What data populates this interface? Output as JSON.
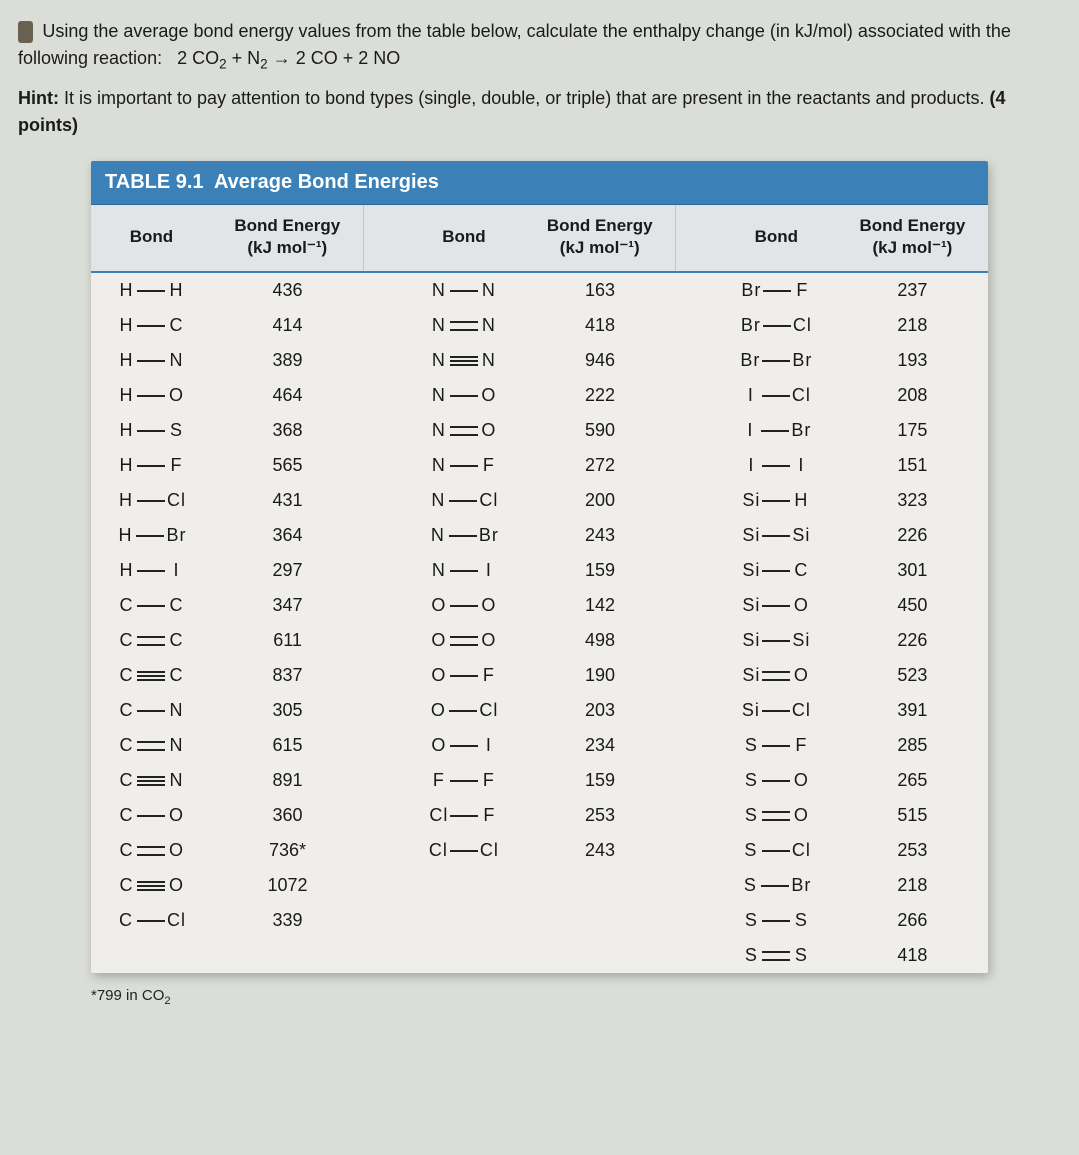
{
  "question": {
    "line1": "Using the average bond energy values from the table below, calculate the enthalpy change (in kJ/mol) associated with the following reaction:",
    "reaction": "2 CO₂ + N₂ → 2 CO + 2 NO"
  },
  "hint": {
    "prefix": "Hint:",
    "text": "It is important to pay attention to bond types (single, double, or triple) that are present in the reactants and products.",
    "points": "(4 points)"
  },
  "table": {
    "title_label": "TABLE 9.1",
    "title_text": "Average Bond Energies",
    "header_bond": "Bond",
    "header_energy_l1": "Bond Energy",
    "header_energy_l2": "(kJ mol⁻¹)",
    "footnote": "*799 in CO₂",
    "colors": {
      "header_bg": "#3b81b7",
      "head_row_bg": "#e1e5e8",
      "body_bg": "#efeeea",
      "page_bg": "#dbded8",
      "rule": "#3b81b7"
    },
    "columns": [
      [
        {
          "a": "H",
          "b": "H",
          "t": 1,
          "v": "436"
        },
        {
          "a": "H",
          "b": "C",
          "t": 1,
          "v": "414"
        },
        {
          "a": "H",
          "b": "N",
          "t": 1,
          "v": "389"
        },
        {
          "a": "H",
          "b": "O",
          "t": 1,
          "v": "464"
        },
        {
          "a": "H",
          "b": "S",
          "t": 1,
          "v": "368"
        },
        {
          "a": "H",
          "b": "F",
          "t": 1,
          "v": "565"
        },
        {
          "a": "H",
          "b": "Cl",
          "t": 1,
          "v": "431"
        },
        {
          "a": "H",
          "b": "Br",
          "t": 1,
          "v": "364"
        },
        {
          "a": "H",
          "b": "I",
          "t": 1,
          "v": "297"
        },
        {
          "a": "C",
          "b": "C",
          "t": 1,
          "v": "347"
        },
        {
          "a": "C",
          "b": "C",
          "t": 2,
          "v": "611"
        },
        {
          "a": "C",
          "b": "C",
          "t": 3,
          "v": "837"
        },
        {
          "a": "C",
          "b": "N",
          "t": 1,
          "v": "305"
        },
        {
          "a": "C",
          "b": "N",
          "t": 2,
          "v": "615"
        },
        {
          "a": "C",
          "b": "N",
          "t": 3,
          "v": "891"
        },
        {
          "a": "C",
          "b": "O",
          "t": 1,
          "v": "360"
        },
        {
          "a": "C",
          "b": "O",
          "t": 2,
          "v": "736*"
        },
        {
          "a": "C",
          "b": "O",
          "t": 3,
          "v": "1072"
        },
        {
          "a": "C",
          "b": "Cl",
          "t": 1,
          "v": "339"
        }
      ],
      [
        {
          "a": "N",
          "b": "N",
          "t": 1,
          "v": "163"
        },
        {
          "a": "N",
          "b": "N",
          "t": 2,
          "v": "418"
        },
        {
          "a": "N",
          "b": "N",
          "t": 3,
          "v": "946"
        },
        {
          "a": "N",
          "b": "O",
          "t": 1,
          "v": "222"
        },
        {
          "a": "N",
          "b": "O",
          "t": 2,
          "v": "590"
        },
        {
          "a": "N",
          "b": "F",
          "t": 1,
          "v": "272"
        },
        {
          "a": "N",
          "b": "Cl",
          "t": 1,
          "v": "200"
        },
        {
          "a": "N",
          "b": "Br",
          "t": 1,
          "v": "243"
        },
        {
          "a": "N",
          "b": "I",
          "t": 1,
          "v": "159"
        },
        {
          "a": "O",
          "b": "O",
          "t": 1,
          "v": "142"
        },
        {
          "a": "O",
          "b": "O",
          "t": 2,
          "v": "498"
        },
        {
          "a": "O",
          "b": "F",
          "t": 1,
          "v": "190"
        },
        {
          "a": "O",
          "b": "Cl",
          "t": 1,
          "v": "203"
        },
        {
          "a": "O",
          "b": "I",
          "t": 1,
          "v": "234"
        },
        {
          "a": "F",
          "b": "F",
          "t": 1,
          "v": "159"
        },
        {
          "a": "Cl",
          "b": "F",
          "t": 1,
          "v": "253"
        },
        {
          "a": "Cl",
          "b": "Cl",
          "t": 1,
          "v": "243"
        }
      ],
      [
        {
          "a": "Br",
          "b": "F",
          "t": 1,
          "v": "237"
        },
        {
          "a": "Br",
          "b": "Cl",
          "t": 1,
          "v": "218"
        },
        {
          "a": "Br",
          "b": "Br",
          "t": 1,
          "v": "193"
        },
        {
          "a": "I",
          "b": "Cl",
          "t": 1,
          "v": "208"
        },
        {
          "a": "I",
          "b": "Br",
          "t": 1,
          "v": "175"
        },
        {
          "a": "I",
          "b": "I",
          "t": 1,
          "v": "151"
        },
        {
          "a": "Si",
          "b": "H",
          "t": 1,
          "v": "323"
        },
        {
          "a": "Si",
          "b": "Si",
          "t": 1,
          "v": "226"
        },
        {
          "a": "Si",
          "b": "C",
          "t": 1,
          "v": "301"
        },
        {
          "a": "Si",
          "b": "O",
          "t": 1,
          "v": "450"
        },
        {
          "a": "Si",
          "b": "Si",
          "t": 1,
          "v": "226"
        },
        {
          "a": "Si",
          "b": "O",
          "t": 2,
          "v": "523"
        },
        {
          "a": "Si",
          "b": "Cl",
          "t": 1,
          "v": "391"
        },
        {
          "a": "S",
          "b": "F",
          "t": 1,
          "v": "285"
        },
        {
          "a": "S",
          "b": "O",
          "t": 1,
          "v": "265"
        },
        {
          "a": "S",
          "b": "O",
          "t": 2,
          "v": "515"
        },
        {
          "a": "S",
          "b": "Cl",
          "t": 1,
          "v": "253"
        },
        {
          "a": "S",
          "b": "Br",
          "t": 1,
          "v": "218"
        },
        {
          "a": "S",
          "b": "S",
          "t": 1,
          "v": "266"
        },
        {
          "a": "S",
          "b": "S",
          "t": 2,
          "v": "418"
        }
      ]
    ]
  }
}
